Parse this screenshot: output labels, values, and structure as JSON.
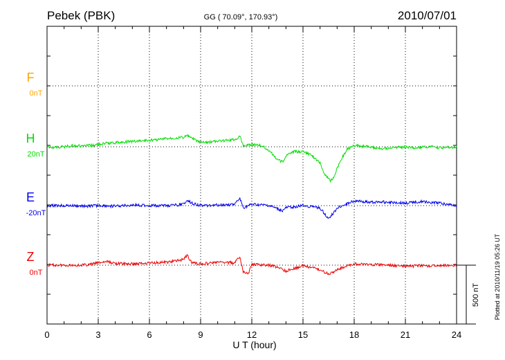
{
  "header": {
    "station": "Pebek (PBK)",
    "coords": "GG ( 70.09°, 170.93°)",
    "date": "2010/07/01"
  },
  "footer": {
    "plotted": "Plotted at 2010/11/19 05:26 UT"
  },
  "chart_data": {
    "type": "line",
    "xlabel": "U T (hour)",
    "xlim": [
      0,
      24
    ],
    "xticks": [
      "0",
      "3",
      "6",
      "9",
      "12",
      "15",
      "18",
      "21",
      "24"
    ],
    "scale_bar_label": "500 nT",
    "scale_bar_nT": 500,
    "grid": true,
    "colors": {
      "F": "#ffa500",
      "H": "#00dd00",
      "E": "#0000ee",
      "Z": "#ee0000"
    },
    "channels": [
      {
        "name": "F",
        "baseline": "0nT",
        "color": "#ffa500",
        "x": [],
        "values": []
      },
      {
        "name": "H",
        "baseline": "20nT",
        "color": "#00dd00",
        "x": [
          0,
          0.5,
          1,
          1.5,
          2,
          2.5,
          3,
          3.5,
          4,
          4.5,
          5,
          5.5,
          6,
          6.5,
          7,
          7.5,
          8,
          8.2,
          8.5,
          9,
          9.5,
          10,
          10.5,
          11,
          11.3,
          11.5,
          12,
          12.5,
          13,
          13.5,
          13.8,
          14,
          14.5,
          15,
          15.5,
          16,
          16.3,
          16.6,
          16.8,
          17,
          17.3,
          17.6,
          18,
          18.5,
          19,
          19.5,
          20,
          20.5,
          21,
          21.5,
          22,
          22.5,
          23,
          23.5,
          24
        ],
        "values": [
          0,
          -5,
          0,
          10,
          5,
          10,
          20,
          30,
          35,
          40,
          45,
          50,
          55,
          60,
          70,
          75,
          80,
          95,
          70,
          35,
          40,
          45,
          55,
          60,
          90,
          10,
          20,
          15,
          -30,
          -110,
          -130,
          -75,
          -40,
          -45,
          -70,
          -140,
          -240,
          -290,
          -260,
          -180,
          -90,
          -20,
          10,
          5,
          -5,
          -15,
          -10,
          -5,
          -5,
          -10,
          -5,
          0,
          -10,
          -5,
          0
        ]
      },
      {
        "name": "E",
        "baseline": "-20nT",
        "color": "#0000ee",
        "x": [
          0,
          1,
          2,
          3,
          4,
          5,
          6,
          7,
          8,
          8.2,
          8.5,
          9,
          10,
          11,
          11.3,
          11.5,
          12,
          13,
          13.8,
          14,
          15,
          16,
          16.5,
          16.8,
          17,
          17.5,
          18,
          19,
          20,
          21,
          22,
          23,
          24
        ],
        "values": [
          0,
          0,
          -5,
          0,
          -5,
          5,
          0,
          0,
          10,
          50,
          20,
          0,
          5,
          10,
          60,
          -20,
          10,
          0,
          -45,
          -20,
          0,
          -20,
          -110,
          -60,
          -20,
          10,
          40,
          30,
          30,
          20,
          35,
          20,
          0
        ]
      },
      {
        "name": "Z",
        "baseline": "0nT",
        "color": "#ee0000",
        "x": [
          0,
          1,
          2,
          2.5,
          3,
          3.5,
          4,
          5,
          6,
          7,
          7.5,
          8,
          8.2,
          8.5,
          9,
          10,
          11,
          11.3,
          11.5,
          11.8,
          12,
          13,
          13.5,
          14,
          15,
          15.5,
          16,
          16.5,
          17,
          17.5,
          18,
          19,
          20,
          21,
          22,
          23,
          24
        ],
        "values": [
          0,
          0,
          0,
          5,
          20,
          30,
          15,
          10,
          20,
          25,
          35,
          50,
          85,
          20,
          10,
          25,
          20,
          70,
          -60,
          -70,
          5,
          0,
          -15,
          -50,
          -5,
          -20,
          -40,
          -75,
          -40,
          -10,
          10,
          5,
          0,
          -10,
          -5,
          -5,
          0
        ]
      }
    ]
  }
}
